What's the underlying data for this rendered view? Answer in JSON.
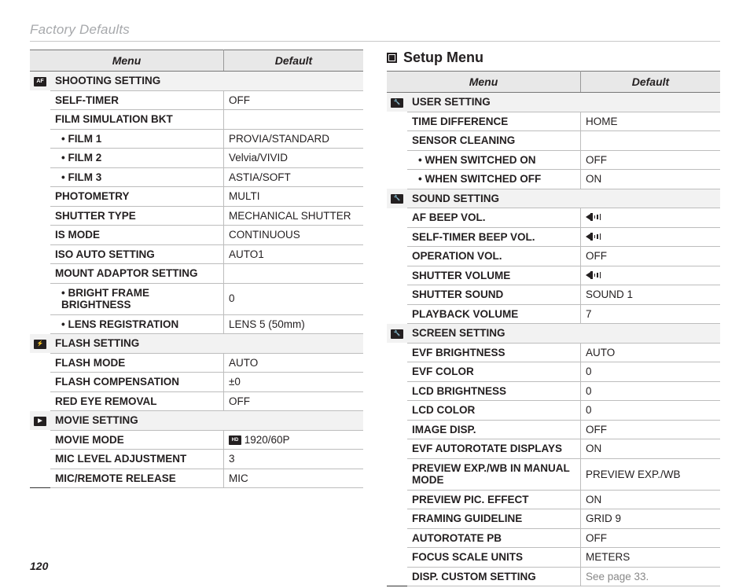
{
  "pageTitle": "Factory Defaults",
  "pageNumber": "120",
  "sectionTitle": "Setup Menu",
  "headers": {
    "menu": "Menu",
    "default": "Default"
  },
  "colors": {
    "headerBg": "#e8e8e8",
    "categoryBg": "#f2f2f2",
    "border": "#bdbdbd",
    "headerBorder": "#777777",
    "heavyBorder": "#333333",
    "mutedText": "#888888",
    "titleText": "#a7a9ac",
    "text": "#231f20"
  },
  "left": [
    {
      "type": "cat",
      "icon": "af",
      "label": "SHOOTING SETTING"
    },
    {
      "type": "row",
      "label": "SELF-TIMER",
      "value": "OFF"
    },
    {
      "type": "header",
      "label": "FILM SIMULATION BKT"
    },
    {
      "type": "sub",
      "label": "FILM 1",
      "value": "PROVIA/STANDARD"
    },
    {
      "type": "sub",
      "label": "FILM 2",
      "value": "Velvia/VIVID"
    },
    {
      "type": "sub",
      "label": "FILM 3",
      "value": "ASTIA/SOFT"
    },
    {
      "type": "row",
      "label": "PHOTOMETRY",
      "value": "MULTI"
    },
    {
      "type": "row",
      "label": "SHUTTER TYPE",
      "value": "MECHANICAL SHUTTER"
    },
    {
      "type": "row",
      "label": "IS MODE",
      "value": "CONTINUOUS"
    },
    {
      "type": "row",
      "label": "ISO AUTO SETTING",
      "value": "AUTO1"
    },
    {
      "type": "header",
      "label": "MOUNT ADAPTOR SETTING"
    },
    {
      "type": "sub",
      "label": "BRIGHT FRAME BRIGHTNESS",
      "value": "0"
    },
    {
      "type": "sub",
      "label": "LENS REGISTRATION",
      "value": "LENS 5 (50mm)"
    },
    {
      "type": "cat",
      "icon": "flash",
      "label": "FLASH SETTING"
    },
    {
      "type": "row",
      "label": "FLASH MODE",
      "value": "AUTO"
    },
    {
      "type": "row",
      "label": "FLASH COMPENSATION",
      "value": "±0"
    },
    {
      "type": "row",
      "label": "RED EYE REMOVAL",
      "value": "OFF"
    },
    {
      "type": "cat",
      "icon": "movie",
      "label": "MOVIE SETTING"
    },
    {
      "type": "row",
      "label": "MOVIE MODE",
      "value": "1920/60P",
      "prefixIcon": "hd"
    },
    {
      "type": "row",
      "label": "MIC LEVEL ADJUSTMENT",
      "value": "3"
    },
    {
      "type": "row",
      "label": "MIC/REMOTE RELEASE",
      "value": "MIC"
    }
  ],
  "right": [
    {
      "type": "cat",
      "icon": "wrench",
      "label": "USER SETTING"
    },
    {
      "type": "row",
      "label": "TIME DIFFERENCE",
      "value": "HOME"
    },
    {
      "type": "header",
      "label": "SENSOR CLEANING"
    },
    {
      "type": "sub",
      "label": "WHEN SWITCHED ON",
      "value": "OFF"
    },
    {
      "type": "sub",
      "label": "WHEN SWITCHED OFF",
      "value": "ON"
    },
    {
      "type": "cat",
      "icon": "wrench",
      "label": "SOUND SETTING"
    },
    {
      "type": "row",
      "label": "AF BEEP VOL.",
      "valueIcon": "speaker"
    },
    {
      "type": "row",
      "label": "SELF-TIMER BEEP VOL.",
      "valueIcon": "speaker"
    },
    {
      "type": "row",
      "label": "OPERATION VOL.",
      "value": "OFF"
    },
    {
      "type": "row",
      "label": "SHUTTER VOLUME",
      "valueIcon": "speaker"
    },
    {
      "type": "row",
      "label": "SHUTTER SOUND",
      "value": "SOUND 1"
    },
    {
      "type": "row",
      "label": "PLAYBACK VOLUME",
      "value": "7"
    },
    {
      "type": "cat",
      "icon": "wrench",
      "label": "SCREEN SETTING"
    },
    {
      "type": "row",
      "label": "EVF BRIGHTNESS",
      "value": "AUTO"
    },
    {
      "type": "row",
      "label": "EVF COLOR",
      "value": "0"
    },
    {
      "type": "row",
      "label": "LCD BRIGHTNESS",
      "value": "0"
    },
    {
      "type": "row",
      "label": "LCD COLOR",
      "value": "0"
    },
    {
      "type": "row",
      "label": "IMAGE DISP.",
      "value": "OFF"
    },
    {
      "type": "row",
      "label": "EVF AUTOROTATE DISPLAYS",
      "value": "ON"
    },
    {
      "type": "row",
      "label": "PREVIEW EXP./WB IN MANUAL MODE",
      "value": "PREVIEW EXP./WB"
    },
    {
      "type": "row",
      "label": "PREVIEW PIC. EFFECT",
      "value": "ON"
    },
    {
      "type": "row",
      "label": "FRAMING GUIDELINE",
      "value": "GRID 9"
    },
    {
      "type": "row",
      "label": "AUTOROTATE PB",
      "value": "OFF"
    },
    {
      "type": "row",
      "label": "FOCUS SCALE UNITS",
      "value": "METERS"
    },
    {
      "type": "row",
      "label": "DISP. CUSTOM SETTING",
      "value": "See page 33.",
      "muted": true
    }
  ]
}
